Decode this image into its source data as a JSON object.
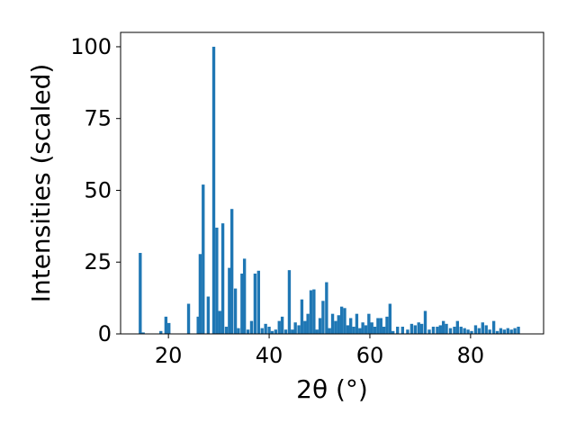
{
  "chart_data": {
    "type": "bar",
    "xlabel": "2θ (°)",
    "ylabel": "Intensities (scaled)",
    "xlim": [
      10.5,
      94.5
    ],
    "ylim": [
      0,
      105
    ],
    "xticks": [
      20,
      40,
      60,
      80
    ],
    "yticks": [
      0,
      25,
      50,
      75,
      100
    ],
    "grid": false,
    "legend": "none",
    "bar_width": 0.6,
    "bar_color": "#1f77b4",
    "bars": [
      {
        "x": 14.4,
        "y": 28.2
      },
      {
        "x": 15.0,
        "y": 0.5
      },
      {
        "x": 18.5,
        "y": 1.0
      },
      {
        "x": 19.5,
        "y": 6.0
      },
      {
        "x": 20.1,
        "y": 3.8
      },
      {
        "x": 24.0,
        "y": 10.5
      },
      {
        "x": 25.9,
        "y": 6.0
      },
      {
        "x": 26.3,
        "y": 27.8
      },
      {
        "x": 26.9,
        "y": 52.0
      },
      {
        "x": 27.9,
        "y": 13.0
      },
      {
        "x": 29.0,
        "y": 100.0
      },
      {
        "x": 29.6,
        "y": 37.0
      },
      {
        "x": 30.2,
        "y": 8.0
      },
      {
        "x": 30.8,
        "y": 38.5
      },
      {
        "x": 31.5,
        "y": 2.5
      },
      {
        "x": 32.1,
        "y": 23.0
      },
      {
        "x": 32.6,
        "y": 43.5
      },
      {
        "x": 33.3,
        "y": 15.8
      },
      {
        "x": 33.9,
        "y": 2.0
      },
      {
        "x": 34.6,
        "y": 21.0
      },
      {
        "x": 35.1,
        "y": 26.2
      },
      {
        "x": 35.8,
        "y": 1.5
      },
      {
        "x": 36.5,
        "y": 4.5
      },
      {
        "x": 37.2,
        "y": 21.0
      },
      {
        "x": 37.9,
        "y": 22.0
      },
      {
        "x": 38.6,
        "y": 2.0
      },
      {
        "x": 39.3,
        "y": 3.5
      },
      {
        "x": 40.0,
        "y": 2.5
      },
      {
        "x": 40.6,
        "y": 1.0
      },
      {
        "x": 41.3,
        "y": 1.5
      },
      {
        "x": 42.0,
        "y": 4.5
      },
      {
        "x": 42.6,
        "y": 6.0
      },
      {
        "x": 43.3,
        "y": 1.5
      },
      {
        "x": 44.0,
        "y": 22.2
      },
      {
        "x": 44.6,
        "y": 1.5
      },
      {
        "x": 45.2,
        "y": 4.0
      },
      {
        "x": 45.9,
        "y": 3.0
      },
      {
        "x": 46.5,
        "y": 12.0
      },
      {
        "x": 47.1,
        "y": 4.5
      },
      {
        "x": 47.7,
        "y": 7.0
      },
      {
        "x": 48.3,
        "y": 15.2
      },
      {
        "x": 48.9,
        "y": 15.5
      },
      {
        "x": 49.5,
        "y": 1.5
      },
      {
        "x": 50.1,
        "y": 5.5
      },
      {
        "x": 50.7,
        "y": 11.5
      },
      {
        "x": 51.4,
        "y": 18.0
      },
      {
        "x": 52.0,
        "y": 2.0
      },
      {
        "x": 52.6,
        "y": 7.0
      },
      {
        "x": 53.2,
        "y": 4.5
      },
      {
        "x": 53.8,
        "y": 6.5
      },
      {
        "x": 54.4,
        "y": 9.5
      },
      {
        "x": 55.0,
        "y": 9.0
      },
      {
        "x": 55.6,
        "y": 3.0
      },
      {
        "x": 56.2,
        "y": 5.5
      },
      {
        "x": 56.8,
        "y": 2.5
      },
      {
        "x": 57.4,
        "y": 7.0
      },
      {
        "x": 58.0,
        "y": 2.0
      },
      {
        "x": 58.6,
        "y": 4.0
      },
      {
        "x": 59.2,
        "y": 3.0
      },
      {
        "x": 59.8,
        "y": 7.0
      },
      {
        "x": 60.4,
        "y": 4.0
      },
      {
        "x": 61.0,
        "y": 2.5
      },
      {
        "x": 61.6,
        "y": 5.5
      },
      {
        "x": 62.2,
        "y": 5.5
      },
      {
        "x": 62.8,
        "y": 2.5
      },
      {
        "x": 63.4,
        "y": 6.0
      },
      {
        "x": 64.0,
        "y": 10.5
      },
      {
        "x": 64.6,
        "y": 1.0
      },
      {
        "x": 65.5,
        "y": 2.5
      },
      {
        "x": 66.5,
        "y": 2.5
      },
      {
        "x": 67.5,
        "y": 1.5
      },
      {
        "x": 68.3,
        "y": 3.5
      },
      {
        "x": 69.0,
        "y": 3.0
      },
      {
        "x": 69.7,
        "y": 4.0
      },
      {
        "x": 70.3,
        "y": 3.5
      },
      {
        "x": 71.0,
        "y": 8.0
      },
      {
        "x": 71.8,
        "y": 1.5
      },
      {
        "x": 72.6,
        "y": 2.5
      },
      {
        "x": 73.4,
        "y": 2.5
      },
      {
        "x": 74.0,
        "y": 3.0
      },
      {
        "x": 74.6,
        "y": 4.5
      },
      {
        "x": 75.2,
        "y": 3.5
      },
      {
        "x": 76.0,
        "y": 2.0
      },
      {
        "x": 76.8,
        "y": 2.5
      },
      {
        "x": 77.4,
        "y": 4.5
      },
      {
        "x": 78.1,
        "y": 2.5
      },
      {
        "x": 78.8,
        "y": 2.0
      },
      {
        "x": 79.5,
        "y": 1.5
      },
      {
        "x": 80.2,
        "y": 1.0
      },
      {
        "x": 81.0,
        "y": 3.0
      },
      {
        "x": 81.7,
        "y": 2.0
      },
      {
        "x": 82.4,
        "y": 4.0
      },
      {
        "x": 83.1,
        "y": 3.0
      },
      {
        "x": 83.8,
        "y": 1.5
      },
      {
        "x": 84.6,
        "y": 4.5
      },
      {
        "x": 85.3,
        "y": 1.0
      },
      {
        "x": 86.0,
        "y": 2.0
      },
      {
        "x": 86.7,
        "y": 1.5
      },
      {
        "x": 87.4,
        "y": 2.0
      },
      {
        "x": 88.1,
        "y": 1.5
      },
      {
        "x": 88.8,
        "y": 2.0
      },
      {
        "x": 89.5,
        "y": 2.5
      }
    ]
  }
}
